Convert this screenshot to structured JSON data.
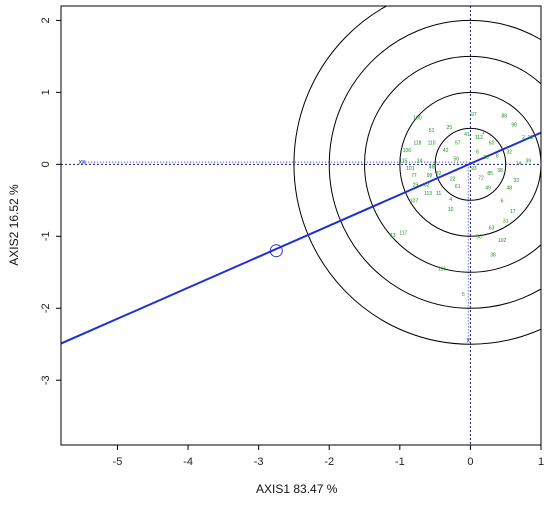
{
  "chart_data": {
    "type": "scatter",
    "title": "",
    "xlabel": "AXIS1 83.47 %",
    "ylabel": "AXIS2 16.52 %",
    "xlim": [
      -5.8,
      1.0
    ],
    "ylim": [
      -3.9,
      2.2
    ],
    "xticks": [
      -5,
      -4,
      -3,
      -2,
      -1,
      0,
      1
    ],
    "yticks": [
      -3,
      -2,
      -1,
      0,
      1,
      2
    ],
    "grid": false,
    "circles": {
      "center": [
        0,
        0
      ],
      "radii": [
        0.5,
        1.0,
        1.5,
        2.0,
        2.5
      ],
      "color": "#000000"
    },
    "fitted_line": {
      "points": [
        [
          -5.8,
          -2.49
        ],
        [
          1.0,
          0.44
        ]
      ],
      "color": "#1f2fd6"
    },
    "open_circle_marker": {
      "x": -2.75,
      "y": -1.2,
      "color": "#1f2fd6"
    },
    "dotted_guides": {
      "color": "#1f2fd6",
      "horizontal_y": 0,
      "vertical_x": 0
    },
    "blue_markers": [
      {
        "x": -5.5,
        "y": 0.03,
        "label": "xx"
      },
      {
        "x": -0.03,
        "y": -2.45,
        "label": "x"
      }
    ],
    "series": [
      {
        "color": "#1a8f1a",
        "points": [
          {
            "label": "97",
            "x": 0.05,
            "y": 0.7
          },
          {
            "label": "88",
            "x": 0.48,
            "y": 0.68
          },
          {
            "label": "100",
            "x": -0.75,
            "y": 0.65
          },
          {
            "label": "90",
            "x": 0.62,
            "y": 0.55
          },
          {
            "label": "25",
            "x": -0.3,
            "y": 0.52
          },
          {
            "label": "51",
            "x": -0.55,
            "y": 0.48
          },
          {
            "label": "1",
            "x": 0.18,
            "y": 0.45
          },
          {
            "label": "41",
            "x": -0.05,
            "y": 0.42
          },
          {
            "label": "112",
            "x": 0.12,
            "y": 0.38
          },
          {
            "label": "2",
            "x": 0.75,
            "y": 0.38
          },
          {
            "label": "18",
            "x": 0.85,
            "y": 0.38
          },
          {
            "label": "110",
            "x": -0.55,
            "y": 0.3
          },
          {
            "label": "118",
            "x": -0.75,
            "y": 0.3
          },
          {
            "label": "57",
            "x": -0.18,
            "y": 0.3
          },
          {
            "label": "60",
            "x": 0.3,
            "y": 0.3
          },
          {
            "label": "106",
            "x": -0.9,
            "y": 0.2
          },
          {
            "label": "42",
            "x": -0.35,
            "y": 0.2
          },
          {
            "label": "6",
            "x": 0.1,
            "y": 0.18
          },
          {
            "label": "32",
            "x": 0.55,
            "y": 0.18
          },
          {
            "label": "8",
            "x": 0.38,
            "y": 0.12
          },
          {
            "label": "30",
            "x": 0.22,
            "y": 0.1
          },
          {
            "label": "56",
            "x": -0.2,
            "y": 0.08
          },
          {
            "label": "115",
            "x": -0.95,
            "y": 0.05
          },
          {
            "label": "24",
            "x": -0.72,
            "y": 0.05
          },
          {
            "label": "39",
            "x": 0.82,
            "y": 0.05
          },
          {
            "label": "14",
            "x": 0.68,
            "y": 0.02
          },
          {
            "label": "46",
            "x": -0.55,
            "y": -0.03
          },
          {
            "label": "93",
            "x": 0.05,
            "y": -0.05
          },
          {
            "label": "101",
            "x": -0.85,
            "y": -0.05
          },
          {
            "label": "38",
            "x": 0.42,
            "y": -0.08
          },
          {
            "label": "82",
            "x": -0.45,
            "y": -0.12
          },
          {
            "label": "85",
            "x": 0.28,
            "y": -0.12
          },
          {
            "label": "77",
            "x": -0.8,
            "y": -0.15
          },
          {
            "label": "99",
            "x": -0.58,
            "y": -0.15
          },
          {
            "label": "72",
            "x": 0.15,
            "y": -0.18
          },
          {
            "label": "22",
            "x": -0.25,
            "y": -0.2
          },
          {
            "label": "33",
            "x": 0.65,
            "y": -0.22
          },
          {
            "label": "29",
            "x": -0.78,
            "y": -0.28
          },
          {
            "label": "62",
            "x": -0.62,
            "y": -0.28
          },
          {
            "label": "61",
            "x": -0.18,
            "y": -0.3
          },
          {
            "label": "49",
            "x": 0.25,
            "y": -0.32
          },
          {
            "label": "48",
            "x": 0.55,
            "y": -0.32
          },
          {
            "label": "113",
            "x": -0.6,
            "y": -0.4
          },
          {
            "label": "11",
            "x": -0.45,
            "y": -0.4
          },
          {
            "label": "107",
            "x": -0.8,
            "y": -0.5
          },
          {
            "label": "4",
            "x": -0.28,
            "y": -0.48
          },
          {
            "label": "6",
            "x": 0.45,
            "y": -0.5
          },
          {
            "label": "10",
            "x": -0.28,
            "y": -0.62
          },
          {
            "label": "17",
            "x": 0.6,
            "y": -0.65
          },
          {
            "label": "31",
            "x": 0.5,
            "y": -0.78
          },
          {
            "label": "63",
            "x": 0.3,
            "y": -0.88
          },
          {
            "label": "117",
            "x": -0.95,
            "y": -0.95
          },
          {
            "label": "13",
            "x": -1.1,
            "y": -0.98
          },
          {
            "label": "50",
            "x": 0.12,
            "y": -1.0
          },
          {
            "label": "102",
            "x": 0.45,
            "y": -1.05
          },
          {
            "label": "36",
            "x": 0.32,
            "y": -1.25
          },
          {
            "label": "116",
            "x": -0.4,
            "y": -1.45
          },
          {
            "label": "5",
            "x": -0.1,
            "y": -1.8
          }
        ]
      }
    ]
  }
}
